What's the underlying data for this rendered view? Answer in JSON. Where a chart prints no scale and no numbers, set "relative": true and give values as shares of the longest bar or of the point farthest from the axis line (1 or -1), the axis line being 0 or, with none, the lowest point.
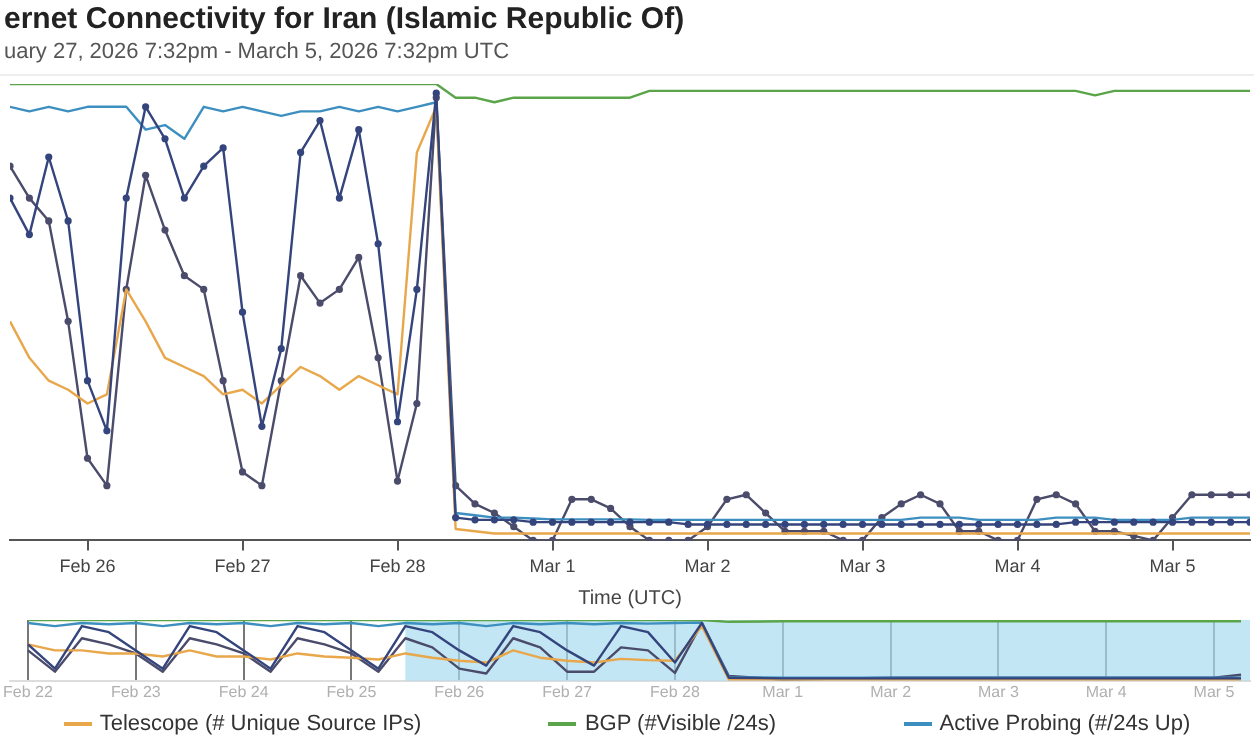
{
  "chart_data": [
    {
      "type": "line",
      "title": "ernet Connectivity for Iran (Islamic Republic Of)",
      "subtitle": "uary 27, 2026 7:32pm - March 5, 2026 7:32pm UTC",
      "xlabel": "Time (UTC)",
      "relative": true,
      "legend": "bottom",
      "xlim": [
        "2026-02-25T12:00",
        "2026-03-05T12:00"
      ],
      "xticks": [
        {
          "value": "2026-02-26",
          "label": "Feb 26"
        },
        {
          "value": "2026-02-27",
          "label": "Feb 27"
        },
        {
          "value": "2026-02-28",
          "label": "Feb 28"
        },
        {
          "value": "2026-03-01",
          "label": "Mar 1"
        },
        {
          "value": "2026-03-02",
          "label": "Mar 2"
        },
        {
          "value": "2026-03-03",
          "label": "Mar 3"
        },
        {
          "value": "2026-03-04",
          "label": "Mar 4"
        },
        {
          "value": "2026-03-05",
          "label": "Mar 5"
        }
      ],
      "x": [
        "2026-02-25T12:00",
        "2026-02-25T15:00",
        "2026-02-25T18:00",
        "2026-02-25T21:00",
        "2026-02-26T00:00",
        "2026-02-26T03:00",
        "2026-02-26T06:00",
        "2026-02-26T09:00",
        "2026-02-26T12:00",
        "2026-02-26T15:00",
        "2026-02-26T18:00",
        "2026-02-26T21:00",
        "2026-02-27T00:00",
        "2026-02-27T03:00",
        "2026-02-27T06:00",
        "2026-02-27T09:00",
        "2026-02-27T12:00",
        "2026-02-27T15:00",
        "2026-02-27T18:00",
        "2026-02-27T21:00",
        "2026-02-28T00:00",
        "2026-02-28T03:00",
        "2026-02-28T06:00",
        "2026-02-28T09:00",
        "2026-02-28T12:00",
        "2026-02-28T15:00",
        "2026-02-28T18:00",
        "2026-02-28T21:00",
        "2026-03-01T00:00",
        "2026-03-01T03:00",
        "2026-03-01T06:00",
        "2026-03-01T09:00",
        "2026-03-01T12:00",
        "2026-03-01T15:00",
        "2026-03-01T18:00",
        "2026-03-01T21:00",
        "2026-03-02T00:00",
        "2026-03-02T03:00",
        "2026-03-02T06:00",
        "2026-03-02T09:00",
        "2026-03-02T12:00",
        "2026-03-02T15:00",
        "2026-03-02T18:00",
        "2026-03-02T21:00",
        "2026-03-03T00:00",
        "2026-03-03T03:00",
        "2026-03-03T06:00",
        "2026-03-03T09:00",
        "2026-03-03T12:00",
        "2026-03-03T15:00",
        "2026-03-03T18:00",
        "2026-03-03T21:00",
        "2026-03-04T00:00",
        "2026-03-04T03:00",
        "2026-03-04T06:00",
        "2026-03-04T09:00",
        "2026-03-04T12:00",
        "2026-03-04T15:00",
        "2026-03-04T18:00",
        "2026-03-04T21:00",
        "2026-03-05T00:00",
        "2026-03-05T03:00",
        "2026-03-05T06:00",
        "2026-03-05T09:00",
        "2026-03-05T12:00"
      ],
      "series": [
        {
          "color": "#34447c",
          "marker": "circle",
          "values": [
            0.75,
            0.67,
            0.84,
            0.7,
            0.35,
            0.24,
            0.75,
            0.95,
            0.88,
            0.75,
            0.82,
            0.86,
            0.5,
            0.25,
            0.42,
            0.85,
            0.92,
            0.75,
            0.9,
            0.65,
            0.26,
            0.55,
            0.98,
            0.05,
            0.045,
            0.045,
            0.045,
            0.04,
            0.04,
            0.04,
            0.04,
            0.04,
            0.04,
            0.04,
            0.04,
            0.035,
            0.035,
            0.035,
            0.035,
            0.035,
            0.035,
            0.035,
            0.035,
            0.035,
            0.035,
            0.035,
            0.035,
            0.035,
            0.035,
            0.035,
            0.035,
            0.035,
            0.035,
            0.035,
            0.035,
            0.04,
            0.04,
            0.04,
            0.04,
            0.04,
            0.04,
            0.04,
            0.04,
            0.04,
            0.04
          ]
        },
        {
          "name": "Telescope (# Unique Source IPs)",
          "color": "#e8a74a",
          "marker": "none",
          "values": [
            0.48,
            0.4,
            0.35,
            0.33,
            0.3,
            0.32,
            0.55,
            0.48,
            0.4,
            0.38,
            0.36,
            0.32,
            0.33,
            0.3,
            0.34,
            0.38,
            0.36,
            0.33,
            0.36,
            0.34,
            0.32,
            0.85,
            0.95,
            0.025,
            0.02,
            0.015,
            0.015,
            0.015,
            0.015,
            0.015,
            0.015,
            0.015,
            0.015,
            0.015,
            0.015,
            0.015,
            0.015,
            0.015,
            0.015,
            0.015,
            0.015,
            0.015,
            0.015,
            0.015,
            0.015,
            0.015,
            0.015,
            0.015,
            0.015,
            0.015,
            0.015,
            0.015,
            0.015,
            0.015,
            0.015,
            0.015,
            0.015,
            0.015,
            0.015,
            0.015,
            0.015,
            0.015,
            0.015,
            0.015,
            0.015
          ]
        },
        {
          "name": "BGP (#Visible /24s)",
          "color": "#5aa54a",
          "marker": "none",
          "values": [
            1,
            1,
            1,
            1,
            1,
            1,
            1,
            1,
            1,
            1,
            1,
            1,
            1,
            1,
            1,
            1,
            1,
            1,
            1,
            1,
            1,
            1,
            1,
            0.97,
            0.97,
            0.96,
            0.97,
            0.97,
            0.97,
            0.97,
            0.97,
            0.97,
            0.97,
            0.985,
            0.985,
            0.985,
            0.985,
            0.985,
            0.985,
            0.985,
            0.985,
            0.985,
            0.985,
            0.985,
            0.985,
            0.985,
            0.985,
            0.985,
            0.985,
            0.985,
            0.985,
            0.985,
            0.985,
            0.985,
            0.985,
            0.985,
            0.975,
            0.985,
            0.985,
            0.985,
            0.985,
            0.985,
            0.985,
            0.985,
            0.985
          ]
        },
        {
          "name": "Active Probing (#/24s Up)",
          "color": "#3d8fc0",
          "marker": "none",
          "values": [
            0.95,
            0.94,
            0.95,
            0.94,
            0.95,
            0.95,
            0.95,
            0.9,
            0.91,
            0.88,
            0.95,
            0.94,
            0.95,
            0.94,
            0.93,
            0.94,
            0.94,
            0.95,
            0.94,
            0.95,
            0.94,
            0.95,
            0.96,
            0.06,
            0.055,
            0.05,
            0.05,
            0.048,
            0.046,
            0.046,
            0.046,
            0.046,
            0.046,
            0.045,
            0.045,
            0.045,
            0.045,
            0.045,
            0.045,
            0.045,
            0.045,
            0.045,
            0.045,
            0.045,
            0.045,
            0.045,
            0.045,
            0.05,
            0.05,
            0.05,
            0.045,
            0.045,
            0.045,
            0.045,
            0.05,
            0.05,
            0.05,
            0.045,
            0.045,
            0.045,
            0.045,
            0.05,
            0.05,
            0.05,
            0.05
          ]
        },
        {
          "color": "#4b4b6b",
          "marker": "circle",
          "values": [
            0.82,
            0.75,
            0.7,
            0.48,
            0.18,
            0.12,
            0.55,
            0.8,
            0.68,
            0.58,
            0.55,
            0.35,
            0.15,
            0.12,
            0.35,
            0.58,
            0.52,
            0.55,
            0.62,
            0.4,
            0.13,
            0.3,
            0.97,
            0.12,
            0.08,
            0.06,
            0.03,
            0,
            0,
            0.09,
            0.09,
            0.07,
            0.03,
            0,
            0,
            0,
            0.03,
            0.09,
            0.1,
            0.06,
            0.02,
            0.02,
            0.02,
            0,
            0,
            0.05,
            0.08,
            0.1,
            0.08,
            0.02,
            0.02,
            0,
            0,
            0.09,
            0.1,
            0.08,
            0.02,
            0.02,
            0.01,
            0,
            0.05,
            0.1,
            0.1,
            0.1,
            0.1
          ]
        }
      ]
    },
    {
      "type": "line",
      "relative": true,
      "grid": "x",
      "xlim": [
        "2026-02-21T20:00",
        "2026-03-05T08:00"
      ],
      "xticks": [
        {
          "value": "2026-02-22",
          "label": "Feb 22"
        },
        {
          "value": "2026-02-23",
          "label": "Feb 23"
        },
        {
          "value": "2026-02-24",
          "label": "Feb 24"
        },
        {
          "value": "2026-02-25",
          "label": "Feb 25"
        },
        {
          "value": "2026-02-26",
          "label": "Feb 26"
        },
        {
          "value": "2026-02-27",
          "label": "Feb 27"
        },
        {
          "value": "2026-02-28",
          "label": "Feb 28"
        },
        {
          "value": "2026-03-01",
          "label": "Mar 1"
        },
        {
          "value": "2026-03-02",
          "label": "Mar 2"
        },
        {
          "value": "2026-03-03",
          "label": "Mar 3"
        },
        {
          "value": "2026-03-04",
          "label": "Mar 4"
        },
        {
          "value": "2026-03-05",
          "label": "Mar 5"
        }
      ],
      "bands": [
        {
          "axis": "x",
          "from": "2026-02-25T12:00",
          "to": "2026-03-05T08:00",
          "color": "#a8dcef"
        }
      ],
      "x": [
        "2026-02-22T00:00",
        "2026-02-22T06:00",
        "2026-02-22T12:00",
        "2026-02-22T18:00",
        "2026-02-23T00:00",
        "2026-02-23T06:00",
        "2026-02-23T12:00",
        "2026-02-23T18:00",
        "2026-02-24T00:00",
        "2026-02-24T06:00",
        "2026-02-24T12:00",
        "2026-02-24T18:00",
        "2026-02-25T00:00",
        "2026-02-25T06:00",
        "2026-02-25T12:00",
        "2026-02-25T18:00",
        "2026-02-26T00:00",
        "2026-02-26T06:00",
        "2026-02-26T12:00",
        "2026-02-26T18:00",
        "2026-02-27T00:00",
        "2026-02-27T06:00",
        "2026-02-27T12:00",
        "2026-02-27T18:00",
        "2026-02-28T00:00",
        "2026-02-28T06:00",
        "2026-02-28T12:00",
        "2026-03-01T00:00",
        "2026-03-02T00:00",
        "2026-03-03T00:00",
        "2026-03-04T00:00",
        "2026-03-05T00:00",
        "2026-03-05T06:00"
      ],
      "series": [
        {
          "color": "#34447c",
          "values": [
            0.6,
            0.2,
            0.9,
            0.8,
            0.5,
            0.2,
            0.9,
            0.8,
            0.5,
            0.2,
            0.9,
            0.8,
            0.5,
            0.2,
            0.9,
            0.8,
            0.5,
            0.25,
            0.9,
            0.8,
            0.5,
            0.25,
            0.9,
            0.8,
            0.3,
            0.95,
            0.05,
            0.04,
            0.04,
            0.04,
            0.04,
            0.04,
            0.04
          ]
        },
        {
          "color": "#e8a74a",
          "values": [
            0.6,
            0.5,
            0.5,
            0.45,
            0.45,
            0.4,
            0.5,
            0.4,
            0.4,
            0.35,
            0.45,
            0.4,
            0.38,
            0.35,
            0.45,
            0.38,
            0.33,
            0.3,
            0.5,
            0.38,
            0.33,
            0.3,
            0.36,
            0.34,
            0.33,
            0.9,
            0.02,
            0.02,
            0.02,
            0.02,
            0.02,
            0.02,
            0.02
          ]
        },
        {
          "color": "#5aa54a",
          "values": [
            1,
            1,
            1,
            1,
            1,
            1,
            1,
            1,
            1,
            1,
            1,
            1,
            1,
            1,
            1,
            1,
            1,
            1,
            1,
            1,
            1,
            1,
            1,
            1,
            1,
            1,
            0.97,
            0.98,
            0.98,
            0.98,
            0.98,
            0.98,
            0.98
          ]
        },
        {
          "color": "#3d8fc0",
          "values": [
            0.95,
            0.9,
            0.95,
            0.93,
            0.95,
            0.9,
            0.95,
            0.93,
            0.95,
            0.9,
            0.95,
            0.93,
            0.95,
            0.9,
            0.95,
            0.93,
            0.95,
            0.9,
            0.95,
            0.93,
            0.95,
            0.93,
            0.95,
            0.94,
            0.95,
            0.96,
            0.06,
            0.05,
            0.05,
            0.05,
            0.05,
            0.05,
            0.05
          ]
        },
        {
          "color": "#4b4b6b",
          "values": [
            0.5,
            0.15,
            0.7,
            0.6,
            0.45,
            0.15,
            0.7,
            0.6,
            0.45,
            0.15,
            0.7,
            0.6,
            0.45,
            0.15,
            0.7,
            0.55,
            0.2,
            0.12,
            0.7,
            0.55,
            0.15,
            0.15,
            0.55,
            0.5,
            0.13,
            0.95,
            0.08,
            0.02,
            0.05,
            0.05,
            0.05,
            0.05,
            0.1
          ]
        }
      ]
    }
  ]
}
